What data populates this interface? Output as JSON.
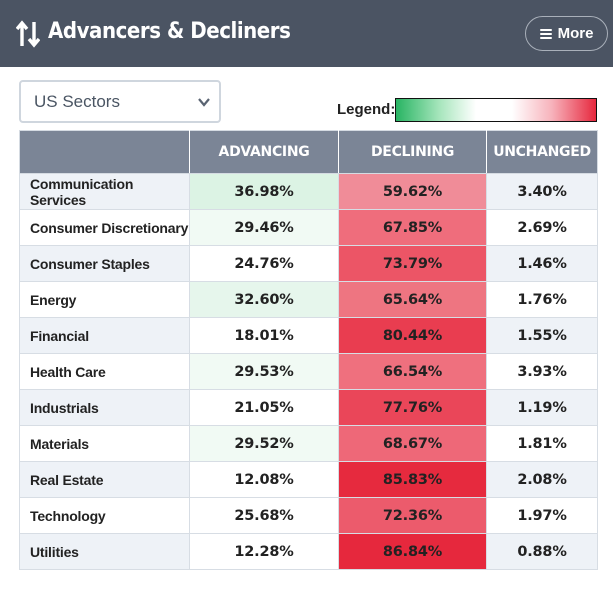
{
  "header": {
    "title": "Advancers & Decliners",
    "more_label": "More",
    "title_icon": "up-down-arrows-icon",
    "menu_icon": "hamburger-icon"
  },
  "filter": {
    "selected": "US Sectors",
    "icon": "chevron-down-icon"
  },
  "legend": {
    "label": "Legend:",
    "colors": [
      "#28b463",
      "#ffffff",
      "#e6283e"
    ]
  },
  "table": {
    "columns": [
      "",
      "ADVANCING",
      "DECLINING",
      "UNCHANGED"
    ],
    "rows": [
      {
        "sector": "Communication Services",
        "advancing": "36.98%",
        "declining": "59.62%",
        "unchanged": "3.40%"
      },
      {
        "sector": "Consumer Discretionary",
        "advancing": "29.46%",
        "declining": "67.85%",
        "unchanged": "2.69%"
      },
      {
        "sector": "Consumer Staples",
        "advancing": "24.76%",
        "declining": "73.79%",
        "unchanged": "1.46%"
      },
      {
        "sector": "Energy",
        "advancing": "32.60%",
        "declining": "65.64%",
        "unchanged": "1.76%"
      },
      {
        "sector": "Financial",
        "advancing": "18.01%",
        "declining": "80.44%",
        "unchanged": "1.55%"
      },
      {
        "sector": "Health Care",
        "advancing": "29.53%",
        "declining": "66.54%",
        "unchanged": "3.93%"
      },
      {
        "sector": "Industrials",
        "advancing": "21.05%",
        "declining": "77.76%",
        "unchanged": "1.19%"
      },
      {
        "sector": "Materials",
        "advancing": "29.52%",
        "declining": "68.67%",
        "unchanged": "1.81%"
      },
      {
        "sector": "Real Estate",
        "advancing": "12.08%",
        "declining": "85.83%",
        "unchanged": "2.08%"
      },
      {
        "sector": "Technology",
        "advancing": "25.68%",
        "declining": "72.36%",
        "unchanged": "1.97%"
      },
      {
        "sector": "Utilities",
        "advancing": "12.28%",
        "declining": "86.84%",
        "unchanged": "0.88%"
      }
    ],
    "cell_colors": {
      "advancing": [
        "#dcf3e4",
        "#f1faf4",
        "#ffffff",
        "#e6f6ec",
        "#ffffff",
        "#f1faf4",
        "#ffffff",
        "#f1faf4",
        "#ffffff",
        "#ffffff",
        "#ffffff"
      ],
      "declining": [
        "#f08c98",
        "#ef6d7c",
        "#ec5566",
        "#ee7581",
        "#e93d50",
        "#ef707e",
        "#ea4659",
        "#ee6878",
        "#e62a3e",
        "#ec5b6c",
        "#e6283d"
      ]
    }
  }
}
